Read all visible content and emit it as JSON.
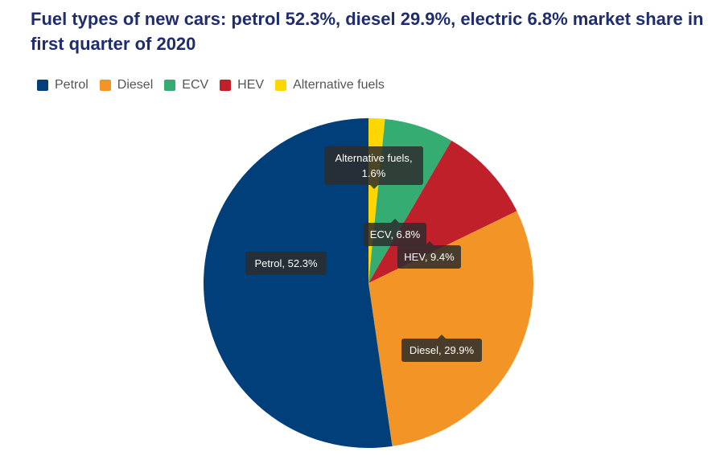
{
  "chart_data": {
    "type": "pie",
    "title": "Fuel types of new cars: petrol 52.3%, diesel 29.9%, electric 6.8% market share in first quarter of 2020",
    "legend_position": "top-left",
    "start": "top, clockwise",
    "slices": [
      {
        "name": "Alternative fuels",
        "value": 1.6,
        "color": "#ffd700",
        "label": "Alternative fuels, 1.6%"
      },
      {
        "name": "ECV",
        "value": 6.8,
        "color": "#35ac72",
        "label": "ECV, 6.8%"
      },
      {
        "name": "HEV",
        "value": 9.4,
        "color": "#c0202a",
        "label": "HEV, 9.4%"
      },
      {
        "name": "Diesel",
        "value": 29.9,
        "color": "#f29426",
        "label": "Diesel, 29.9%"
      },
      {
        "name": "Petrol",
        "value": 52.3,
        "color": "#003f7a",
        "label": "Petrol, 52.3%"
      }
    ],
    "legend": [
      "Petrol",
      "Diesel",
      "ECV",
      "HEV",
      "Alternative fuels"
    ]
  }
}
